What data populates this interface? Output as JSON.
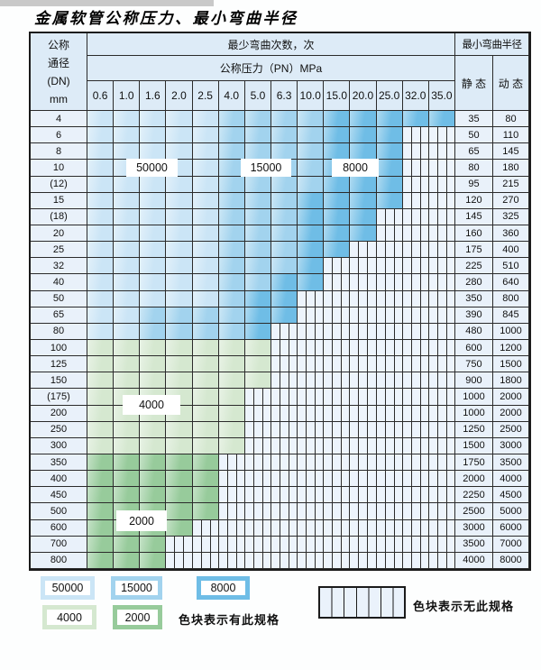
{
  "title": "金属软管公称压力、最小弯曲半径",
  "colors": {
    "blue_50000": "#cbe5f6",
    "blue_15000": "#a2d3ee",
    "blue_8000": "#6fbde6",
    "green_4000": "#d5e8d0",
    "green_2000": "#97cb9b",
    "hatch_bg": "#edf4fc",
    "label_col_bg": "#e9f1fa",
    "header_bg": "#ddebf7",
    "border": "#2b2b2b"
  },
  "table": {
    "header": {
      "dn_lines": [
        "公称",
        "通径",
        "(DN)",
        "mm"
      ],
      "bend_cycles_label": "最少弯曲次数，次",
      "pressure_label": "公称压力（PN）MPa",
      "radius_label": "最小弯曲半径",
      "static_label": "静 态",
      "dynamic_label": "动 态",
      "pressure_columns": [
        "0.6",
        "1.0",
        "1.6",
        "2.0",
        "2.5",
        "4.0",
        "5.0",
        "6.3",
        "10.0",
        "15.0",
        "20.0",
        "25.0",
        "32.0",
        "35.0"
      ]
    },
    "cell_code_legend": {
      "L": "50000 cycles (light blue)",
      "M": "15000 cycles (medium blue)",
      "D": "8000 cycles (dark blue)",
      "g": "4000 cycles (light green)",
      "G": "2000 cycles (dark green)",
      "X": "no specification (hatched)"
    },
    "rows": [
      {
        "dn": "4",
        "cells": "LLLLLMMMMDDDDD",
        "static": "35",
        "dynamic": "80"
      },
      {
        "dn": "6",
        "cells": "LLLLLMMMMDDDXX",
        "static": "50",
        "dynamic": "110"
      },
      {
        "dn": "8",
        "cells": "LLLLLMMMMDDDXX",
        "static": "65",
        "dynamic": "145"
      },
      {
        "dn": "10",
        "cells": "LLLLLMMMMDDDXX",
        "static": "80",
        "dynamic": "180"
      },
      {
        "dn": "(12)",
        "cells": "LLLLLMMMMDDDXX",
        "static": "95",
        "dynamic": "215"
      },
      {
        "dn": "15",
        "cells": "LLLLLMMMDDDDXX",
        "static": "120",
        "dynamic": "270"
      },
      {
        "dn": "(18)",
        "cells": "LLLLLMMMDDDXXX",
        "static": "145",
        "dynamic": "325"
      },
      {
        "dn": "20",
        "cells": "LLLLLMMMDDDXXX",
        "static": "160",
        "dynamic": "360"
      },
      {
        "dn": "25",
        "cells": "LLLLLMMMDDXXXX",
        "static": "175",
        "dynamic": "400"
      },
      {
        "dn": "32",
        "cells": "LLLLLMMMDXXXXX",
        "static": "225",
        "dynamic": "510"
      },
      {
        "dn": "40",
        "cells": "LLLLLMMDDXXXXX",
        "static": "280",
        "dynamic": "640"
      },
      {
        "dn": "50",
        "cells": "LLLLLMDDXXXXXX",
        "static": "350",
        "dynamic": "800"
      },
      {
        "dn": "65",
        "cells": "LLMMMMDDXXXXXX",
        "static": "390",
        "dynamic": "845"
      },
      {
        "dn": "80",
        "cells": "LLMMMMDXXXXXXX",
        "static": "480",
        "dynamic": "1000"
      },
      {
        "dn": "100",
        "cells": "gggggggXXXXXXX",
        "static": "600",
        "dynamic": "1200"
      },
      {
        "dn": "125",
        "cells": "gggggggXXXXXXX",
        "static": "750",
        "dynamic": "1500"
      },
      {
        "dn": "150",
        "cells": "gggggggXXXXXXX",
        "static": "900",
        "dynamic": "1800"
      },
      {
        "dn": "(175)",
        "cells": "ggggggXXXXXXXX",
        "static": "1000",
        "dynamic": "2000"
      },
      {
        "dn": "200",
        "cells": "ggggggXXXXXXXX",
        "static": "1000",
        "dynamic": "2000"
      },
      {
        "dn": "250",
        "cells": "ggggggXXXXXXXX",
        "static": "1250",
        "dynamic": "2500"
      },
      {
        "dn": "300",
        "cells": "ggggggXXXXXXXX",
        "static": "1500",
        "dynamic": "3000"
      },
      {
        "dn": "350",
        "cells": "GGGGGXXXXXXXXX",
        "static": "1750",
        "dynamic": "3500"
      },
      {
        "dn": "400",
        "cells": "GGGGGXXXXXXXXX",
        "static": "2000",
        "dynamic": "4000"
      },
      {
        "dn": "450",
        "cells": "GGGGGXXXXXXXXX",
        "static": "2250",
        "dynamic": "4500"
      },
      {
        "dn": "500",
        "cells": "GGGGGXXXXXXXXX",
        "static": "2500",
        "dynamic": "5000"
      },
      {
        "dn": "600",
        "cells": "GGGGXXXXXXXXXX",
        "static": "3000",
        "dynamic": "6000"
      },
      {
        "dn": "700",
        "cells": "GGGXXXXXXXXXXX",
        "static": "3500",
        "dynamic": "7000"
      },
      {
        "dn": "800",
        "cells": "GGGXXXXXXXXXXX",
        "static": "4000",
        "dynamic": "8000"
      }
    ]
  },
  "zone_labels": {
    "z50000": "50000",
    "z15000": "15000",
    "z8000": "8000",
    "z4000": "4000",
    "z2000": "2000"
  },
  "legend": {
    "items": [
      {
        "label": "50000",
        "color": "blue_50000"
      },
      {
        "label": "15000",
        "color": "blue_15000"
      },
      {
        "label": "8000",
        "color": "blue_8000"
      },
      {
        "label": "4000",
        "color": "green_4000"
      },
      {
        "label": "2000",
        "color": "green_2000"
      }
    ],
    "has_spec_text": "色块表示有此规格",
    "no_spec_text": "色块表示无此规格"
  }
}
